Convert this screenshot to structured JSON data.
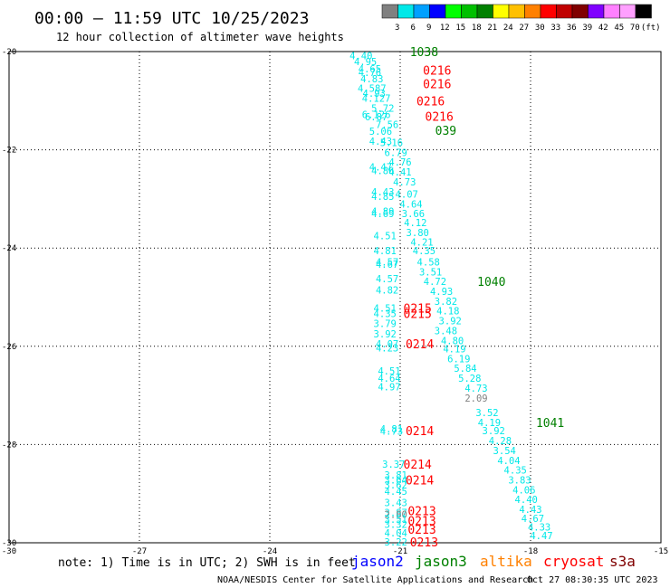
{
  "header": {
    "title": "00:00 – 11:59 UTC 10/25/2023",
    "subtitle": "12 hour collection of altimeter wave heights"
  },
  "colorbar": {
    "labels": [
      "3",
      "6",
      "9",
      "12",
      "15",
      "18",
      "21",
      "24",
      "27",
      "30",
      "33",
      "36",
      "39",
      "42",
      "45",
      "70",
      "(ft)"
    ],
    "colors": [
      "#808080",
      "#00e8e8",
      "#00a0ff",
      "#0000ff",
      "#00ff00",
      "#00c000",
      "#008000",
      "#ffff00",
      "#ffc000",
      "#ff8000",
      "#ff0000",
      "#c00000",
      "#800000",
      "#8000ff",
      "#ff80ff",
      "#ffa0ff",
      "#000000"
    ]
  },
  "footer": {
    "note": "note: 1) Time is in UTC; 2) SWH is in feet",
    "satellites": [
      {
        "name": "jason2",
        "color": "#0000ff"
      },
      {
        "name": "jason3",
        "color": "#008000"
      },
      {
        "name": "altika",
        "color": "#ff8000"
      },
      {
        "name": "cryosat",
        "color": "#ff0000"
      },
      {
        "name": "s3a",
        "color": "#800000"
      }
    ],
    "credit": "NOAA/NESDIS Center for Satellite Applications and Research",
    "timestamp": "Oct 27 08:30:35 UTC 2023"
  },
  "chart_data": {
    "type": "scatter",
    "x_ticks": [
      "-30",
      "-27",
      "-24",
      "-21",
      "-18",
      "-15"
    ],
    "y_ticks": [
      "-20",
      "-22",
      "-24",
      "-26",
      "-28",
      "-30"
    ],
    "xlim": [
      -30,
      -15
    ],
    "ylim": [
      -30,
      -20
    ],
    "grid": true,
    "wave_heights": [
      {
        "x": -21.9,
        "y": -20.08,
        "v": "4.40",
        "c": "#00e8e8"
      },
      {
        "x": -21.8,
        "y": -20.2,
        "v": "4.95",
        "c": "#00e8e8"
      },
      {
        "x": -21.7,
        "y": -20.35,
        "v": "4.65",
        "c": "#00e8e8"
      },
      {
        "x": -21.7,
        "y": -20.42,
        "v": "4.76",
        "c": "#00e8e8"
      },
      {
        "x": -21.65,
        "y": -20.55,
        "v": "4.83",
        "c": "#00e8e8"
      },
      {
        "x": -21.65,
        "y": -20.75,
        "v": "4.587",
        "c": "#00e8e8"
      },
      {
        "x": -21.6,
        "y": -20.85,
        "v": "4.93",
        "c": "#00e8e8"
      },
      {
        "x": -21.55,
        "y": -20.95,
        "v": "4.127",
        "c": "#00e8e8"
      },
      {
        "x": -21.4,
        "y": -21.15,
        "v": "5.72",
        "c": "#00e8e8"
      },
      {
        "x": -21.55,
        "y": -21.28,
        "v": "6.126",
        "c": "#00e8e8"
      },
      {
        "x": -21.55,
        "y": -21.33,
        "v": "6.87",
        "c": "#00e8e8"
      },
      {
        "x": -21.3,
        "y": -21.48,
        "v": "7.56",
        "c": "#00e8e8"
      },
      {
        "x": -21.45,
        "y": -21.62,
        "v": "5.06",
        "c": "#00e8e8"
      },
      {
        "x": -21.45,
        "y": -21.82,
        "v": "4.43",
        "c": "#00e8e8"
      },
      {
        "x": -21.2,
        "y": -21.85,
        "v": "5.16",
        "c": "#00e8e8"
      },
      {
        "x": -21.1,
        "y": -22.05,
        "v": "6.79",
        "c": "#00e8e8"
      },
      {
        "x": -21.0,
        "y": -22.25,
        "v": "4.76",
        "c": "#00e8e8"
      },
      {
        "x": -21.45,
        "y": -22.35,
        "v": "4.47",
        "c": "#00e8e8"
      },
      {
        "x": -21.4,
        "y": -22.42,
        "v": "4.86",
        "c": "#00e8e8"
      },
      {
        "x": -21.0,
        "y": -22.45,
        "v": "4.41",
        "c": "#00e8e8"
      },
      {
        "x": -20.9,
        "y": -22.65,
        "v": "4.73",
        "c": "#00e8e8"
      },
      {
        "x": -21.4,
        "y": -22.85,
        "v": "4.43",
        "c": "#00e8e8"
      },
      {
        "x": -21.4,
        "y": -22.95,
        "v": "4.85",
        "c": "#00e8e8"
      },
      {
        "x": -20.85,
        "y": -22.9,
        "v": "4.07",
        "c": "#00e8e8"
      },
      {
        "x": -20.75,
        "y": -23.1,
        "v": "4.64",
        "c": "#00e8e8"
      },
      {
        "x": -21.4,
        "y": -23.25,
        "v": "4.89",
        "c": "#00e8e8"
      },
      {
        "x": -21.4,
        "y": -23.3,
        "v": "4.69",
        "c": "#00e8e8"
      },
      {
        "x": -20.7,
        "y": -23.3,
        "v": "3.66",
        "c": "#00e8e8"
      },
      {
        "x": -20.65,
        "y": -23.48,
        "v": "4.12",
        "c": "#00e8e8"
      },
      {
        "x": -20.6,
        "y": -23.68,
        "v": "3.80",
        "c": "#00e8e8"
      },
      {
        "x": -21.35,
        "y": -23.75,
        "v": "4.51",
        "c": "#00e8e8"
      },
      {
        "x": -20.5,
        "y": -23.88,
        "v": "4.21",
        "c": "#00e8e8"
      },
      {
        "x": -21.35,
        "y": -24.05,
        "v": "4.81",
        "c": "#00e8e8"
      },
      {
        "x": -20.45,
        "y": -24.05,
        "v": "4.35",
        "c": "#00e8e8"
      },
      {
        "x": -21.3,
        "y": -24.28,
        "v": "4.57",
        "c": "#00e8e8"
      },
      {
        "x": -21.3,
        "y": -24.33,
        "v": "4.67",
        "c": "#00e8e8"
      },
      {
        "x": -20.35,
        "y": -24.28,
        "v": "4.58",
        "c": "#00e8e8"
      },
      {
        "x": -20.3,
        "y": -24.48,
        "v": "3.51",
        "c": "#00e8e8"
      },
      {
        "x": -21.3,
        "y": -24.62,
        "v": "4.57",
        "c": "#00e8e8"
      },
      {
        "x": -20.2,
        "y": -24.68,
        "v": "4.72",
        "c": "#00e8e8"
      },
      {
        "x": -21.3,
        "y": -24.85,
        "v": "4.82",
        "c": "#00e8e8"
      },
      {
        "x": -20.05,
        "y": -24.88,
        "v": "4.93",
        "c": "#00e8e8"
      },
      {
        "x": -19.95,
        "y": -25.08,
        "v": "3.82",
        "c": "#00e8e8"
      },
      {
        "x": -21.35,
        "y": -25.22,
        "v": "4.51",
        "c": "#00e8e8"
      },
      {
        "x": -21.35,
        "y": -25.33,
        "v": "4.35",
        "c": "#00e8e8"
      },
      {
        "x": -19.9,
        "y": -25.28,
        "v": "4.18",
        "c": "#00e8e8"
      },
      {
        "x": -21.35,
        "y": -25.53,
        "v": "3.79",
        "c": "#00e8e8"
      },
      {
        "x": -19.85,
        "y": -25.48,
        "v": "3.92",
        "c": "#00e8e8"
      },
      {
        "x": -21.35,
        "y": -25.75,
        "v": "3.92",
        "c": "#00e8e8"
      },
      {
        "x": -19.95,
        "y": -25.68,
        "v": "3.48",
        "c": "#00e8e8"
      },
      {
        "x": -19.8,
        "y": -25.88,
        "v": "4.80",
        "c": "#00e8e8"
      },
      {
        "x": -21.3,
        "y": -25.95,
        "v": "4.07",
        "c": "#00e8e8"
      },
      {
        "x": -21.3,
        "y": -26.03,
        "v": "4.23",
        "c": "#00e8e8"
      },
      {
        "x": -19.75,
        "y": -26.05,
        "v": "4.19",
        "c": "#00e8e8"
      },
      {
        "x": -19.65,
        "y": -26.25,
        "v": "6.19",
        "c": "#00e8e8"
      },
      {
        "x": -19.5,
        "y": -26.45,
        "v": "5.84",
        "c": "#00e8e8"
      },
      {
        "x": -21.25,
        "y": -26.5,
        "v": "4.51",
        "c": "#00e8e8"
      },
      {
        "x": -21.25,
        "y": -26.65,
        "v": "4.64",
        "c": "#00e8e8"
      },
      {
        "x": -19.4,
        "y": -26.65,
        "v": "5.28",
        "c": "#00e8e8"
      },
      {
        "x": -21.25,
        "y": -26.82,
        "v": "4.97",
        "c": "#00e8e8"
      },
      {
        "x": -19.25,
        "y": -26.85,
        "v": "4.73",
        "c": "#00e8e8"
      },
      {
        "x": -19.25,
        "y": -27.05,
        "v": "2.09",
        "c": "#808080"
      },
      {
        "x": -19.0,
        "y": -27.35,
        "v": "3.52",
        "c": "#00e8e8"
      },
      {
        "x": -18.95,
        "y": -27.55,
        "v": "4.19",
        "c": "#00e8e8"
      },
      {
        "x": -21.2,
        "y": -27.68,
        "v": "4.81",
        "c": "#00e8e8"
      },
      {
        "x": -21.2,
        "y": -27.73,
        "v": "4.73",
        "c": "#00e8e8"
      },
      {
        "x": -18.85,
        "y": -27.72,
        "v": "3.92",
        "c": "#00e8e8"
      },
      {
        "x": -18.7,
        "y": -27.92,
        "v": "4.28",
        "c": "#00e8e8"
      },
      {
        "x": -18.6,
        "y": -28.12,
        "v": "3.54",
        "c": "#00e8e8"
      },
      {
        "x": -18.5,
        "y": -28.32,
        "v": "4.04",
        "c": "#00e8e8"
      },
      {
        "x": -21.15,
        "y": -28.4,
        "v": "3.37",
        "c": "#00e8e8"
      },
      {
        "x": -18.35,
        "y": -28.52,
        "v": "4.35",
        "c": "#00e8e8"
      },
      {
        "x": -21.1,
        "y": -28.62,
        "v": "3.81",
        "c": "#00e8e8"
      },
      {
        "x": -21.1,
        "y": -28.72,
        "v": "3.64",
        "c": "#00e8e8"
      },
      {
        "x": -18.25,
        "y": -28.72,
        "v": "3.83",
        "c": "#00e8e8"
      },
      {
        "x": -21.1,
        "y": -28.82,
        "v": "3.62",
        "c": "#00e8e8"
      },
      {
        "x": -21.1,
        "y": -28.95,
        "v": "4.45",
        "c": "#00e8e8"
      },
      {
        "x": -18.15,
        "y": -28.92,
        "v": "4.06",
        "c": "#00e8e8"
      },
      {
        "x": -18.1,
        "y": -29.12,
        "v": "4.40",
        "c": "#00e8e8"
      },
      {
        "x": -21.1,
        "y": -29.18,
        "v": "3.43",
        "c": "#00e8e8"
      },
      {
        "x": -18.0,
        "y": -29.32,
        "v": "4.43",
        "c": "#00e8e8"
      },
      {
        "x": -21.1,
        "y": -29.38,
        "v": "3.87",
        "c": "#00e8e8"
      },
      {
        "x": -21.1,
        "y": -29.42,
        "v": "2.80",
        "c": "#808080"
      },
      {
        "x": -21.1,
        "y": -29.52,
        "v": "3.51",
        "c": "#00e8e8"
      },
      {
        "x": -17.95,
        "y": -29.5,
        "v": "4.67",
        "c": "#00e8e8"
      },
      {
        "x": -21.1,
        "y": -29.62,
        "v": "3.32",
        "c": "#00e8e8"
      },
      {
        "x": -17.8,
        "y": -29.68,
        "v": "4.33",
        "c": "#00e8e8"
      },
      {
        "x": -21.1,
        "y": -29.8,
        "v": "4.04",
        "c": "#00e8e8"
      },
      {
        "x": -17.75,
        "y": -29.85,
        "v": "4.47",
        "c": "#00e8e8"
      },
      {
        "x": -21.1,
        "y": -29.98,
        "v": "3.22",
        "c": "#00e8e8"
      }
    ],
    "time_labels": [
      {
        "x": -20.45,
        "y": -20.0,
        "v": "1038",
        "c": "#008000"
      },
      {
        "x": -20.15,
        "y": -20.38,
        "v": "0216",
        "c": "#ff0000"
      },
      {
        "x": -20.15,
        "y": -20.65,
        "v": "0216",
        "c": "#ff0000"
      },
      {
        "x": -20.3,
        "y": -21.0,
        "v": "0216",
        "c": "#ff0000"
      },
      {
        "x": -20.1,
        "y": -21.32,
        "v": "0216",
        "c": "#ff0000"
      },
      {
        "x": -19.95,
        "y": -21.6,
        "v": "039",
        "c": "#008000"
      },
      {
        "x": -18.9,
        "y": -24.68,
        "v": "1040",
        "c": "#008000"
      },
      {
        "x": -20.6,
        "y": -25.22,
        "v": "0215",
        "c": "#ff0000"
      },
      {
        "x": -20.6,
        "y": -25.33,
        "v": "0215",
        "c": "#ff0000"
      },
      {
        "x": -20.55,
        "y": -25.95,
        "v": "0214",
        "c": "#ff0000"
      },
      {
        "x": -17.55,
        "y": -27.55,
        "v": "1041",
        "c": "#008000"
      },
      {
        "x": -20.55,
        "y": -27.72,
        "v": "0214",
        "c": "#ff0000"
      },
      {
        "x": -20.6,
        "y": -28.4,
        "v": "0214",
        "c": "#ff0000"
      },
      {
        "x": -20.55,
        "y": -28.72,
        "v": "0214",
        "c": "#ff0000"
      },
      {
        "x": -20.5,
        "y": -29.35,
        "v": "0213",
        "c": "#ff0000"
      },
      {
        "x": -20.5,
        "y": -29.55,
        "v": "0213",
        "c": "#ff0000"
      },
      {
        "x": -20.5,
        "y": -29.72,
        "v": "0213",
        "c": "#ff0000"
      },
      {
        "x": -20.45,
        "y": -29.98,
        "v": "0213",
        "c": "#ff0000"
      }
    ]
  }
}
